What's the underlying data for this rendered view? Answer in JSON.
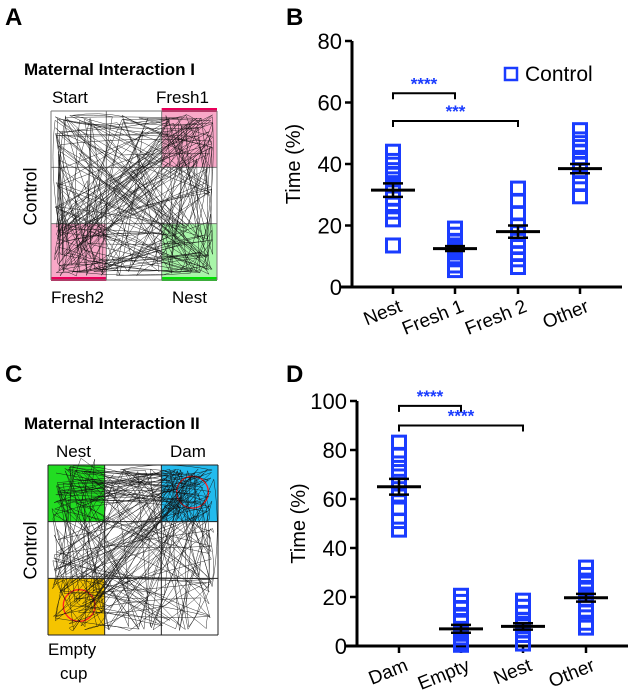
{
  "panels": {
    "A": {
      "letter": "A",
      "title": "Maternal Interaction I",
      "side_label": "Control",
      "zones": {
        "top_left": "Start",
        "top_right": "Fresh1",
        "bottom_left": "Fresh2",
        "bottom_right": "Nest"
      },
      "colors": {
        "fresh": "#f9a8c8",
        "fresh_bar": "#e8005a",
        "nest": "#a8f5a8",
        "nest_bar": "#00e000"
      }
    },
    "B": {
      "letter": "B"
    },
    "C": {
      "letter": "C",
      "title": "Maternal Interaction II",
      "side_label": "Control",
      "zones": {
        "top_left": "Nest",
        "top_right": "Dam",
        "bottom_left_line1": "Empty",
        "bottom_left_line2": "cup"
      },
      "colors": {
        "nest": "#22dd22",
        "dam": "#22bbee",
        "empty_cup": "#f5c400",
        "cup_circle": "#ff2020"
      }
    },
    "D": {
      "letter": "D"
    }
  },
  "chart_data": [
    {
      "id": "B",
      "type": "scatter",
      "title": "",
      "xlabel": "",
      "ylabel": "Time (%)",
      "ylim": [
        0,
        80
      ],
      "yticks": [
        0,
        20,
        40,
        60,
        80
      ],
      "categories": [
        "Nest",
        "Fresh 1",
        "Fresh 2",
        "Other"
      ],
      "legend": {
        "entries": [
          "Control"
        ],
        "placement": "top-right"
      },
      "series": [
        {
          "name": "Control",
          "color": "#1a3cff",
          "marker": "open-square",
          "points": [
            [
              44,
              41,
              38,
              36.5,
              35,
              33,
              31,
              29,
              27,
              24.5,
              22,
              13.5
            ],
            [
              19,
              17,
              15,
              13.5,
              12.5,
              12,
              11.5,
              10,
              9,
              7,
              5.5
            ],
            [
              32,
              28,
              24,
              20,
              17.5,
              15,
              13,
              11,
              9,
              6.5
            ],
            [
              51,
              48,
              45.5,
              44,
              42,
              40,
              38,
              36,
              33.5,
              29.5
            ]
          ],
          "mean": [
            31.5,
            12.5,
            18,
            38.5
          ],
          "sem": [
            2.2,
            0.8,
            2.0,
            1.5
          ]
        }
      ],
      "significance": [
        {
          "from": "Nest",
          "to": "Fresh 1",
          "label": "****",
          "y": 63
        },
        {
          "from": "Nest",
          "to": "Fresh 2",
          "label": "***",
          "y": 54
        }
      ]
    },
    {
      "id": "D",
      "type": "scatter",
      "title": "",
      "xlabel": "",
      "ylabel": "Time (%)",
      "ylim": [
        0,
        100
      ],
      "yticks": [
        0,
        20,
        40,
        60,
        80,
        100
      ],
      "categories": [
        "Dam",
        "Empty",
        "Nest",
        "Other"
      ],
      "series": [
        {
          "name": "Control",
          "color": "#1a3cff",
          "marker": "open-square",
          "points": [
            [
              83,
              78,
              74.5,
              71,
              67,
              64,
              61,
              56.5,
              51,
              47.5
            ],
            [
              20.5,
              18,
              15.5,
              12,
              9.5,
              7,
              5,
              3.5,
              1.5,
              0.5
            ],
            [
              18.5,
              16,
              13.5,
              10.5,
              9,
              8,
              6.5,
              4.5,
              1
            ],
            [
              32,
              29,
              25.5,
              23,
              21,
              19,
              17,
              14,
              9.5,
              7.5
            ]
          ],
          "mean": [
            65,
            7,
            8,
            19.7
          ],
          "sem": [
            3.2,
            1.6,
            1.3,
            1.6
          ]
        }
      ],
      "significance": [
        {
          "from": "Dam",
          "to": "Empty",
          "label": "****",
          "y": 98
        },
        {
          "from": "Dam",
          "to": "Nest",
          "label": "****",
          "y": 90
        }
      ]
    }
  ]
}
